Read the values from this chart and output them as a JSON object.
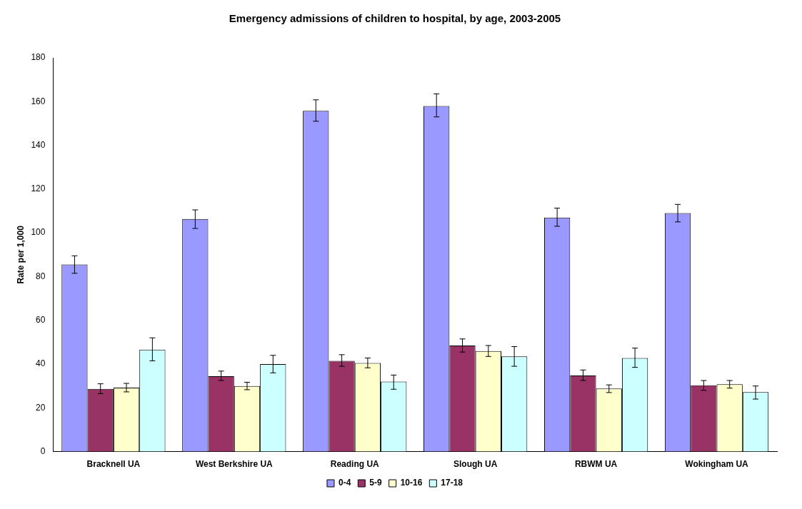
{
  "chart_data": {
    "type": "bar",
    "title": "Emergency admissions of children to hospital, by age, 2003-2005",
    "ylabel": "Rate per 1,000",
    "categories": [
      "Bracknell UA",
      "West Berkshire UA",
      "Reading UA",
      "Slough UA",
      "RBWM UA",
      "Wokingham UA"
    ],
    "series": [
      {
        "name": "0-4",
        "color": "#9999ff",
        "values": [
          85.5,
          106.3,
          155.8,
          158,
          107,
          109
        ],
        "errors": [
          [
            81.5,
            89.5
          ],
          [
            102,
            110.5
          ],
          [
            151,
            160.8
          ],
          [
            153,
            163.5
          ],
          [
            103,
            111.3
          ],
          [
            105,
            113
          ]
        ]
      },
      {
        "name": "5-9",
        "color": "#993366",
        "values": [
          28.7,
          34.5,
          41.5,
          48.5,
          34.8,
          30.3
        ],
        "errors": [
          [
            26.5,
            31
          ],
          [
            32.5,
            36.8
          ],
          [
            39,
            44.3
          ],
          [
            45.5,
            51.5
          ],
          [
            32.5,
            37.3
          ],
          [
            28,
            32.5
          ]
        ]
      },
      {
        "name": "10-16",
        "color": "#ffffcc",
        "values": [
          29.2,
          30,
          40.5,
          46,
          28.8,
          30.8
        ],
        "errors": [
          [
            27.3,
            31.2
          ],
          [
            28.3,
            31.7
          ],
          [
            38.3,
            42.8
          ],
          [
            43.5,
            48.5
          ],
          [
            27,
            30.5
          ],
          [
            29,
            32.5
          ]
        ]
      },
      {
        "name": "17-18",
        "color": "#ccffff",
        "values": [
          46.6,
          40,
          32,
          43.5,
          42.8,
          27.2
        ],
        "errors": [
          [
            41.5,
            52
          ],
          [
            36,
            44
          ],
          [
            28.5,
            35
          ],
          [
            39,
            48
          ],
          [
            38.5,
            47.3
          ],
          [
            24,
            30
          ]
        ]
      }
    ],
    "ylim": [
      0,
      180
    ],
    "yticks": [
      0,
      20,
      40,
      60,
      80,
      100,
      120,
      140,
      160,
      180
    ],
    "grid": false,
    "legend": "bottom"
  }
}
